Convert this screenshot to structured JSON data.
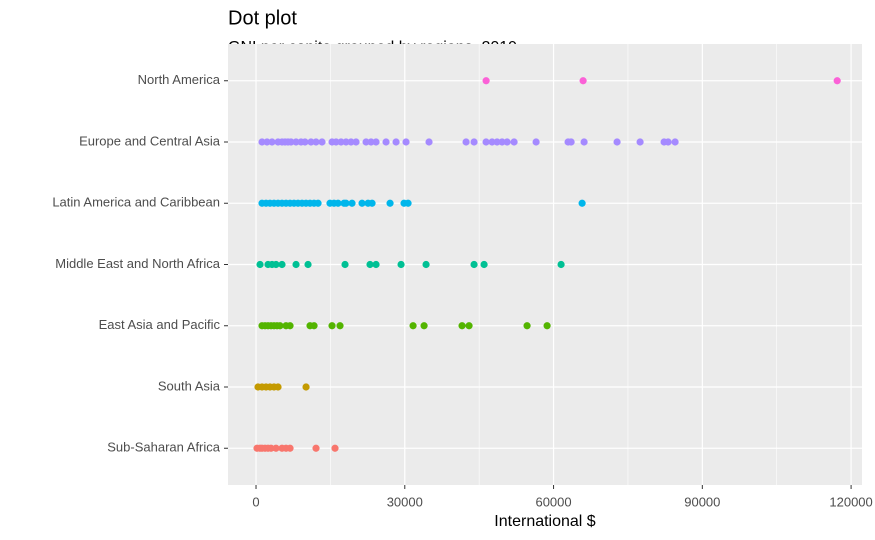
{
  "chart_data": {
    "type": "scatter",
    "title": "Dot plot",
    "subtitle": "GNI per capita grouped by regions, 2019",
    "x_label": "International $",
    "xlim": [
      -5650,
      122200
    ],
    "xticks": [
      0,
      30000,
      60000,
      90000,
      120000
    ],
    "grid": true,
    "series": [
      {
        "name": "Sub-Saharan Africa",
        "color": "#F8766D",
        "values": [
          200,
          800,
          1210,
          1820,
          2420,
          3030,
          4030,
          5240,
          6050,
          6860,
          12100,
          15930
        ]
      },
      {
        "name": "South Asia",
        "color": "#C49A00",
        "values": [
          400,
          1210,
          2020,
          2820,
          3630,
          4440,
          10090
        ]
      },
      {
        "name": "East Asia and Pacific",
        "color": "#53B400",
        "values": [
          1210,
          1820,
          2420,
          3030,
          3630,
          4240,
          4840,
          6050,
          6860,
          10890,
          11700,
          15330,
          16940,
          31670,
          33890,
          41550,
          42960,
          54660,
          58700
        ]
      },
      {
        "name": "Middle East and North Africa",
        "color": "#00C094",
        "values": [
          810,
          2420,
          3230,
          4030,
          5240,
          8070,
          10490,
          17950,
          22990,
          24200,
          29250,
          34290,
          43970,
          45990,
          61520
        ]
      },
      {
        "name": "Latin America and Caribbean",
        "color": "#00B6EB",
        "values": [
          1210,
          2020,
          2820,
          3630,
          4440,
          5240,
          6050,
          6860,
          7660,
          8470,
          9280,
          10080,
          10890,
          11700,
          12510,
          14920,
          15730,
          16540,
          17750,
          18150,
          19360,
          21380,
          22590,
          23400,
          27030,
          29850,
          30660,
          65760
        ]
      },
      {
        "name": "Europe and Central Asia",
        "color": "#A58AFF",
        "values": [
          1210,
          2220,
          3230,
          4440,
          5240,
          5850,
          6450,
          7060,
          8070,
          9080,
          9880,
          11090,
          12100,
          13310,
          15330,
          16140,
          17150,
          18150,
          19160,
          20170,
          22190,
          23200,
          24200,
          26220,
          28240,
          30250,
          34890,
          42360,
          43970,
          46390,
          47600,
          48610,
          49620,
          50630,
          52040,
          56480,
          62930,
          63540,
          66160,
          72810,
          77450,
          82290,
          83100,
          84510
        ]
      },
      {
        "name": "North America",
        "color": "#FB61D7",
        "values": [
          46400,
          65960,
          117200
        ]
      }
    ]
  }
}
